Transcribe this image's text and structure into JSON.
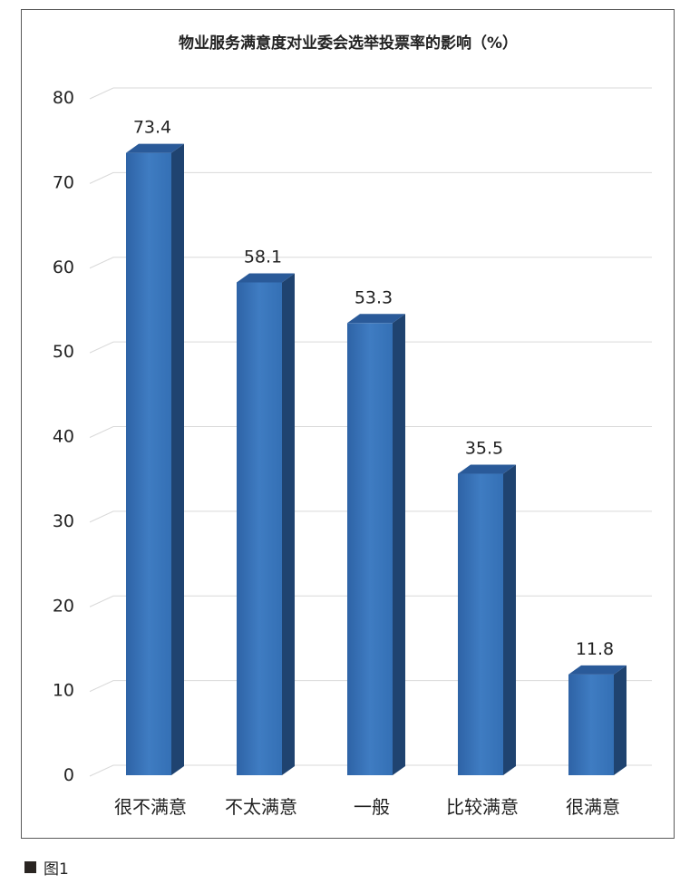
{
  "chart_data": {
    "type": "bar",
    "title": "物业服务满意度对业委会选举投票率的影响（%）",
    "categories": [
      "很不满意",
      "不太满意",
      "一般",
      "比较满意",
      "很满意"
    ],
    "values": [
      73.4,
      58.1,
      53.3,
      35.5,
      11.8
    ],
    "value_labels": [
      "73.4",
      "58.1",
      "53.3",
      "35.5",
      "11.8"
    ],
    "ylim": [
      0,
      80
    ],
    "yticks": [
      0,
      10,
      20,
      30,
      40,
      50,
      60,
      70,
      80
    ],
    "grid": true,
    "bar_color": "#3a72b6",
    "bar_side_color": "#1f4370",
    "bar_top_color": "#2a5a99"
  },
  "caption": {
    "label": "图1"
  }
}
